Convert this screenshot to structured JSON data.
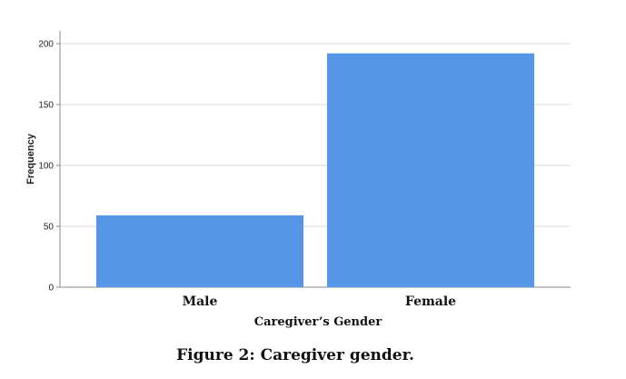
{
  "chart_data": {
    "type": "bar",
    "categories": [
      "Male",
      "Female"
    ],
    "values": [
      59,
      192
    ],
    "xlabel": "Caregiver’s Gender",
    "ylabel": "Frequency",
    "ylim": [
      0,
      210
    ],
    "yticks": [
      0,
      50,
      100,
      150,
      200
    ],
    "grid": true,
    "bar_color": "#5596e6"
  },
  "caption": "Figure 2: Caregiver gender."
}
